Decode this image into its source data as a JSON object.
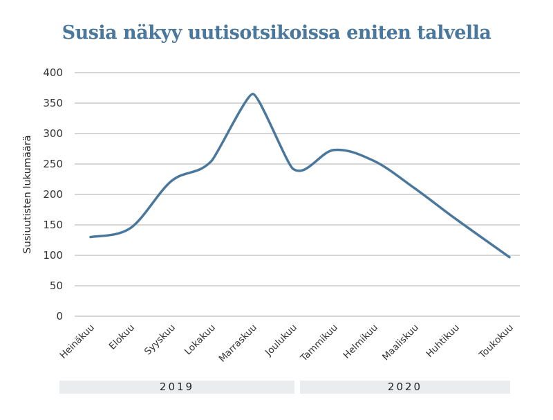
{
  "chart_data": {
    "type": "line",
    "title": "Susia näkyy uutisotsikoissa eniten talvella",
    "xlabel": "",
    "ylabel": "Susiuutisten lukumäärä",
    "ylim": [
      0,
      400
    ],
    "yticks": [
      0,
      50,
      100,
      150,
      200,
      250,
      300,
      350,
      400
    ],
    "grid": true,
    "legend": "none",
    "categories": [
      "Heinäkuu",
      "Elokuu",
      "Syyskuu",
      "Lokakuu",
      "Marraskuu",
      "Joulukuu",
      "Tammikuu",
      "Helmikuu",
      "Maaliskuu",
      "Huhtikuu",
      "Toukokuu"
    ],
    "series": [
      {
        "name": "Susiuutisten lukumäärä",
        "color": "#4a779c",
        "values": [
          130,
          145,
          222,
          255,
          365,
          242,
          273,
          255,
          210,
          160,
          97
        ]
      }
    ],
    "x_groups": [
      {
        "label": "2019",
        "categories": [
          "Heinäkuu",
          "Elokuu",
          "Syyskuu",
          "Lokakuu",
          "Marraskuu",
          "Joulukuu"
        ]
      },
      {
        "label": "2020",
        "categories": [
          "Tammikuu",
          "Helmikuu",
          "Maaliskuu",
          "Huhtikuu",
          "Toukokuu"
        ]
      }
    ]
  },
  "header": {
    "title": "Susia näkyy uutisotsikoissa eniten talvella"
  },
  "axis": {
    "ylabel": "Susiuutisten lukumäärä",
    "yticks": [
      "0",
      "50",
      "100",
      "150",
      "200",
      "250",
      "300",
      "350",
      "400"
    ],
    "xticks": [
      "Heinäkuu",
      "Elokuu",
      "Syyskuu",
      "Lokakuu",
      "Marraskuu",
      "Joulukuu",
      "Tammikuu",
      "Helmikuu",
      "Maaliskuu",
      "Huhtikuu",
      "Toukokuu"
    ]
  },
  "groups": {
    "y2019": "2019",
    "y2020": "2020"
  },
  "colors": {
    "line": "#4a779c",
    "grid": "#c8c8c8",
    "title": "#4a779c",
    "group_bg": "#ebecee"
  }
}
